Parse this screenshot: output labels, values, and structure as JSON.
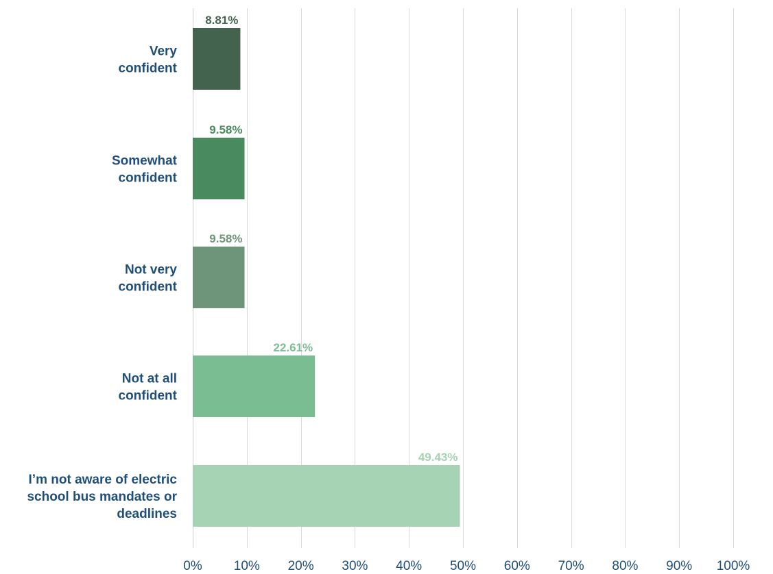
{
  "chart_data": {
    "type": "bar",
    "orientation": "horizontal",
    "categories": [
      [
        "Very",
        "confident"
      ],
      [
        "Somewhat",
        "confident"
      ],
      [
        "Not very",
        "confident"
      ],
      [
        "Not at all",
        "confident"
      ],
      [
        "I’m not aware of electric",
        "school bus mandates or",
        "deadlines"
      ]
    ],
    "values": [
      8.81,
      9.58,
      9.58,
      22.61,
      49.43
    ],
    "value_labels": [
      "8.81%",
      "9.58%",
      "9.58%",
      "22.61%",
      "49.43%"
    ],
    "bar_colors": [
      "#44634f",
      "#4a8a5f",
      "#6e9479",
      "#7bbd93",
      "#a6d3b4"
    ],
    "label_colors": [
      "#44634f",
      "#4a8a5f",
      "#6e9479",
      "#7bbd93",
      "#a6d3b4"
    ],
    "x_ticks": [
      "0%",
      "10%",
      "20%",
      "30%",
      "40%",
      "50%",
      "60%",
      "70%",
      "80%",
      "90%",
      "100%"
    ],
    "xlim": [
      0,
      100
    ],
    "grid": true,
    "title": "",
    "xlabel": "",
    "ylabel": ""
  }
}
